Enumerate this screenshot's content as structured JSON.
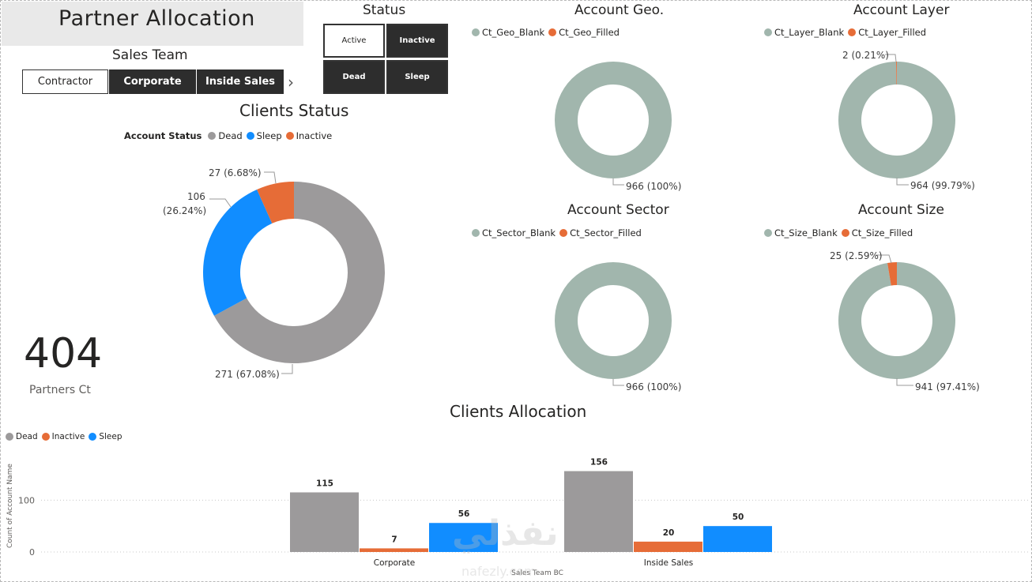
{
  "page": {
    "title": "Partner Allocation"
  },
  "sales_team": {
    "title": "Sales Team",
    "items": [
      {
        "label": "Contractor",
        "selected": false
      },
      {
        "label": "Corporate",
        "selected": true
      },
      {
        "label": "Inside Sales",
        "selected": true
      }
    ],
    "next_icon": "chevron-right-icon"
  },
  "status": {
    "title": "Status",
    "items": [
      {
        "label": "Active",
        "selected": false
      },
      {
        "label": "Inactive",
        "selected": true
      },
      {
        "label": "Dead",
        "selected": true
      },
      {
        "label": "Sleep",
        "selected": true
      }
    ]
  },
  "kpi": {
    "value": "404",
    "label": "Partners Ct"
  },
  "colors": {
    "dead": "#9c9a9b",
    "sleep": "#118dff",
    "inactive": "#e66c37",
    "blank": "#a1b6ad",
    "filled": "#e66c37"
  },
  "clients_status": {
    "title": "Clients Status",
    "legend_title": "Account Status",
    "legend": [
      "Dead",
      "Sleep",
      "Inactive"
    ],
    "labels": {
      "dead": "271 (67.08%)",
      "sleep_value": "106",
      "sleep_pct": "(26.24%)",
      "inactive": "27 (6.68%)"
    }
  },
  "geo": {
    "title": "Account Geo.",
    "legend": [
      "Ct_Geo_Blank",
      "Ct_Geo_Filled"
    ],
    "label_main": "966 (100%)"
  },
  "layer": {
    "title": "Account Layer",
    "legend": [
      "Ct_Layer_Blank",
      "Ct_Layer_Filled"
    ],
    "label_main": "964 (99.79%)",
    "label_small": "2 (0.21%)"
  },
  "sector": {
    "title": "Account Sector",
    "legend": [
      "Ct_Sector_Blank",
      "Ct_Sector_Filled"
    ],
    "label_main": "966 (100%)"
  },
  "size": {
    "title": "Account Size",
    "legend": [
      "Ct_Size_Blank",
      "Ct_Size_Filled"
    ],
    "label_main": "941 (97.41%)",
    "label_small": "25 (2.59%)"
  },
  "allocation": {
    "title": "Clients Allocation",
    "legend": [
      "Dead",
      "Inactive",
      "Sleep"
    ],
    "y_axis_label": "Count of Account Name",
    "x_axis_label": "Sales Team BC",
    "y_ticks": [
      "0",
      "100"
    ]
  },
  "chart_data": [
    {
      "type": "pie",
      "title": "Clients Status",
      "categories": [
        "Dead",
        "Sleep",
        "Inactive"
      ],
      "values": [
        271,
        106,
        27
      ],
      "percent": [
        67.08,
        26.24,
        6.68
      ],
      "legend_position": "top-left"
    },
    {
      "type": "pie",
      "title": "Account Geo.",
      "categories": [
        "Ct_Geo_Blank",
        "Ct_Geo_Filled"
      ],
      "values": [
        966,
        0
      ]
    },
    {
      "type": "pie",
      "title": "Account Layer",
      "categories": [
        "Ct_Layer_Blank",
        "Ct_Layer_Filled"
      ],
      "values": [
        964,
        2
      ]
    },
    {
      "type": "pie",
      "title": "Account Sector",
      "categories": [
        "Ct_Sector_Blank",
        "Ct_Sector_Filled"
      ],
      "values": [
        966,
        0
      ]
    },
    {
      "type": "pie",
      "title": "Account Size",
      "categories": [
        "Ct_Size_Blank",
        "Ct_Size_Filled"
      ],
      "values": [
        941,
        25
      ]
    },
    {
      "type": "bar",
      "title": "Clients Allocation",
      "categories": [
        "Corporate",
        "Inside Sales"
      ],
      "series": [
        {
          "name": "Dead",
          "values": [
            115,
            156
          ]
        },
        {
          "name": "Inactive",
          "values": [
            7,
            20
          ]
        },
        {
          "name": "Sleep",
          "values": [
            56,
            50
          ]
        }
      ],
      "xlabel": "Sales Team BC",
      "ylabel": "Count of Account Name",
      "ylim": [
        0,
        165
      ],
      "grid": true,
      "legend_position": "top-left"
    }
  ],
  "watermark": {
    "text_ar": "نفذلي",
    "text_en": "nafezly.com"
  }
}
